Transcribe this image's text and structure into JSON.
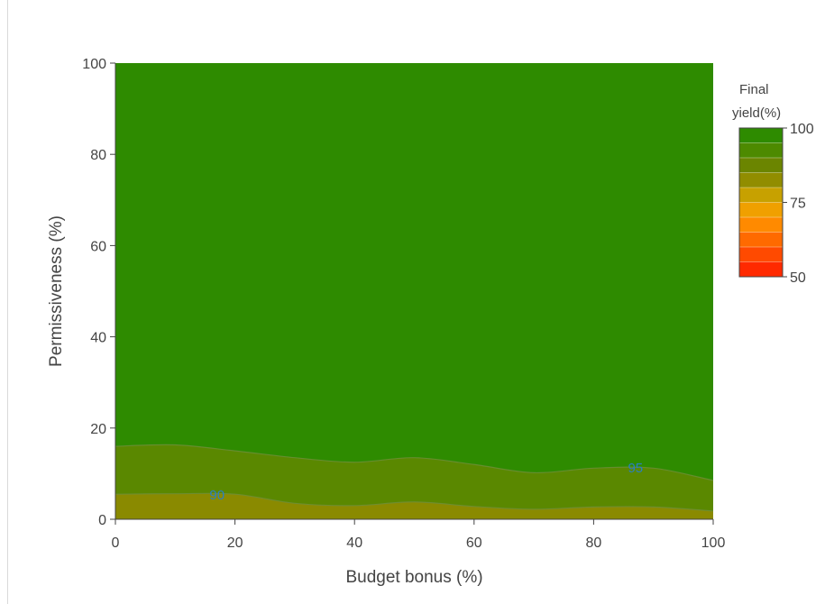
{
  "chart_data": {
    "type": "contour",
    "xlabel": "Budget bonus (%)",
    "ylabel": "Permissiveness (%)",
    "xlim": [
      0,
      100
    ],
    "ylim": [
      0,
      100
    ],
    "xticks": [
      "0",
      "20",
      "40",
      "60",
      "80",
      "100"
    ],
    "yticks": [
      "0",
      "20",
      "40",
      "60",
      "80",
      "100"
    ],
    "grid": false,
    "colorbar": {
      "title_lines": [
        "Final",
        "yield(%)"
      ],
      "range": [
        50,
        100
      ],
      "tick_values": [
        100,
        75,
        50
      ],
      "tick_labels": [
        "100",
        "75",
        "50"
      ],
      "position": "right",
      "colors": {
        "100": "#2e8b00",
        "95": "#4d8a00",
        "90": "#6b8500",
        "85": "#918d00",
        "80": "#c7a100",
        "75": "#f0a000",
        "70": "#ff8a00",
        "65": "#ff6a00",
        "60": "#ff4a00",
        "55": "#ff2a00",
        "50": "#ff1010"
      }
    },
    "contours": [
      {
        "level": 95,
        "label": "95",
        "label_at": {
          "x": 87,
          "y": 11.5
        },
        "points": [
          [
            0,
            16
          ],
          [
            10,
            16.3
          ],
          [
            20,
            15
          ],
          [
            30,
            13.5
          ],
          [
            40,
            12.5
          ],
          [
            50,
            13.5
          ],
          [
            60,
            12
          ],
          [
            70,
            10.2
          ],
          [
            80,
            11.2
          ],
          [
            90,
            11.2
          ],
          [
            100,
            8.5
          ]
        ]
      },
      {
        "level": 90,
        "label": "90",
        "label_at": {
          "x": 17,
          "y": 5.5
        },
        "points": [
          [
            0,
            5.5
          ],
          [
            10,
            5.6
          ],
          [
            20,
            5.5
          ],
          [
            30,
            3.5
          ],
          [
            40,
            3.0
          ],
          [
            50,
            3.8
          ],
          [
            60,
            2.8
          ],
          [
            70,
            2.2
          ],
          [
            80,
            2.7
          ],
          [
            90,
            2.7
          ],
          [
            100,
            1.8
          ]
        ]
      }
    ]
  }
}
